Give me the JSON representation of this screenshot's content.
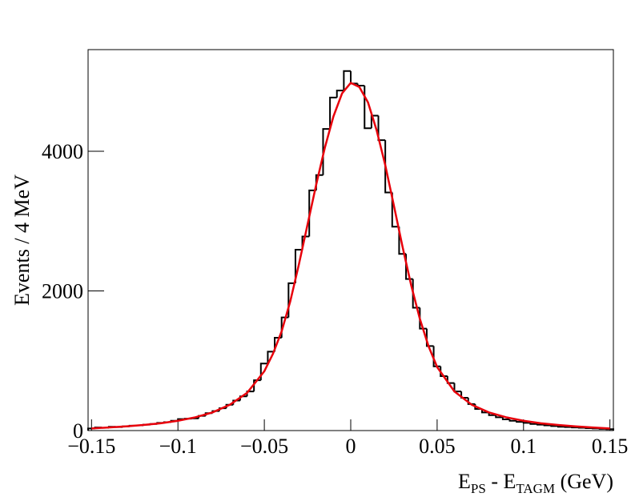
{
  "chart_data": {
    "type": "histogram",
    "xlabel": [
      "E",
      "PS",
      " - E",
      "TAGM",
      "  (GeV)"
    ],
    "ylabel": "Events / 4 MeV",
    "color": "#000000",
    "bins": [
      -0.152,
      -0.148,
      -0.144,
      -0.14,
      -0.136,
      -0.132,
      -0.128,
      -0.124,
      -0.12,
      -0.116,
      -0.112,
      -0.108,
      -0.104,
      -0.1,
      -0.096,
      -0.092,
      -0.088,
      -0.084,
      -0.08,
      -0.076,
      -0.072,
      -0.068,
      -0.064,
      -0.06,
      -0.056,
      -0.052,
      -0.048,
      -0.044,
      -0.04,
      -0.036,
      -0.032,
      -0.028,
      -0.024,
      -0.02,
      -0.016,
      -0.012,
      -0.008,
      -0.004,
      0,
      0.004,
      0.008,
      0.012,
      0.016,
      0.02,
      0.024,
      0.028,
      0.032,
      0.036,
      0.04,
      0.044,
      0.048,
      0.052,
      0.056,
      0.06,
      0.064,
      0.068,
      0.072,
      0.076,
      0.08,
      0.084,
      0.088,
      0.092,
      0.096,
      0.1,
      0.104,
      0.108,
      0.112,
      0.116,
      0.12,
      0.124,
      0.128,
      0.132,
      0.136,
      0.14,
      0.144,
      0.148,
      0.152
    ],
    "values": [
      30,
      45,
      40,
      55,
      50,
      60,
      70,
      75,
      85,
      95,
      110,
      120,
      140,
      165,
      170,
      175,
      210,
      250,
      280,
      320,
      370,
      430,
      490,
      560,
      720,
      960,
      1130,
      1330,
      1620,
      2110,
      2590,
      2780,
      3440,
      3660,
      4320,
      4770,
      4870,
      5150,
      4970,
      4940,
      4330,
      4510,
      4160,
      3410,
      2920,
      2530,
      2170,
      1760,
      1460,
      1210,
      920,
      780,
      680,
      560,
      470,
      380,
      310,
      260,
      220,
      190,
      160,
      140,
      125,
      110,
      95,
      85,
      75,
      65,
      55,
      50,
      45,
      40,
      35,
      30,
      25,
      20
    ],
    "fit": {
      "color": "#e8000b",
      "x": [
        -0.15,
        -0.14,
        -0.13,
        -0.12,
        -0.11,
        -0.1,
        -0.09,
        -0.08,
        -0.07,
        -0.06,
        -0.05,
        -0.045,
        -0.04,
        -0.035,
        -0.03,
        -0.025,
        -0.02,
        -0.015,
        -0.01,
        -0.005,
        0,
        0.005,
        0.01,
        0.015,
        0.02,
        0.025,
        0.03,
        0.035,
        0.04,
        0.045,
        0.05,
        0.06,
        0.07,
        0.08,
        0.09,
        0.1,
        0.11,
        0.12,
        0.13,
        0.14,
        0.15
      ],
      "values": [
        30,
        45,
        60,
        80,
        105,
        140,
        190,
        260,
        370,
        540,
        850,
        1100,
        1420,
        1850,
        2380,
        2950,
        3520,
        4050,
        4500,
        4830,
        4980,
        4920,
        4700,
        4300,
        3800,
        3220,
        2630,
        2080,
        1600,
        1210,
        910,
        560,
        370,
        260,
        190,
        140,
        105,
        80,
        60,
        45,
        30
      ]
    },
    "xlim": [
      -0.152,
      0.152
    ],
    "ylim": [
      0,
      5456
    ],
    "xticks": [
      {
        "value": -0.15,
        "label": "−0.15"
      },
      {
        "value": -0.1,
        "label": "−0.1"
      },
      {
        "value": -0.05,
        "label": "−0.05"
      },
      0,
      0.05,
      0.1,
      0.15
    ],
    "yticks": [
      0,
      2000,
      4000
    ]
  }
}
